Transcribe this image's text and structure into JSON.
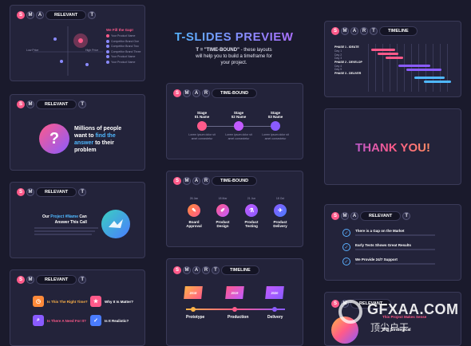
{
  "smart": [
    "S",
    "M",
    "A",
    "R",
    "T"
  ],
  "intro": {
    "title": "T-SLIDES PREVIEW",
    "line1_bold": "T = \"TIME-BOUND\"",
    "line1_rest": " - these layouts",
    "line2": "will help you to build a timeframe for",
    "line3": "your project."
  },
  "s1": {
    "pill": "RELEVANT",
    "gap_title": "We Fill the Gap!",
    "list": [
      "Your Product Name",
      "Competitor Brand One",
      "Competitor Brand Two",
      "Competitor Brand Three",
      "Your Product Name",
      "Your Product Name"
    ],
    "axis_left": "Low Price",
    "axis_right": "High Price"
  },
  "s2": {
    "pill": "RELEVANT",
    "question": "?",
    "text_a": "Millions of people",
    "text_b": "want to ",
    "text_b_hl": "find the",
    "text_c_hl": "answer",
    "text_c": " to their",
    "text_d": "problem"
  },
  "s3": {
    "pill": "RELEVANT",
    "head_a": "Our ",
    "head_hl": "Project #Name",
    "head_b": " Can",
    "head_c": "Answer This Call"
  },
  "s4": {
    "pill": "RELEVANT",
    "items": [
      "Is This The Right Time?",
      "Why It Is Matter?",
      "Is There A Need For It?",
      "Is It Realistic?"
    ]
  },
  "s5": {
    "pill": "TIME-BOUND",
    "stages": [
      {
        "label": "Stage",
        "name": "01 Name"
      },
      {
        "label": "Stage",
        "name": "02 Name"
      },
      {
        "label": "Stage",
        "name": "03 Name"
      }
    ]
  },
  "s6": {
    "pill": "TIME-BOUND",
    "dates": [
      "26 Jan",
      "18 Mar",
      "21 Jun",
      "18 Oct"
    ],
    "items": [
      {
        "a": "Board",
        "b": "Approval"
      },
      {
        "a": "Product",
        "b": "Design"
      },
      {
        "a": "Product",
        "b": "Testing"
      },
      {
        "a": "Product",
        "b": "Delivery"
      }
    ]
  },
  "s7": {
    "pill": "TIMELINE",
    "cards": [
      "2018",
      "2019",
      "2020"
    ],
    "phases": [
      "Prototype",
      "Production",
      "Delivery"
    ]
  },
  "s8": {
    "pill": "TIMELINE",
    "phases": [
      "PHASE 1 - IDEATE",
      "PHASE 2 - DEVELOP",
      "PHASE 3 - DELIVER"
    ],
    "days": [
      "Day 1",
      "Day 2",
      "Day 3",
      "Day 4",
      "Day 5"
    ]
  },
  "s9": {
    "thanks": "THANK YOU!"
  },
  "s10": {
    "pill": "RELEVANT",
    "items": [
      "There is a Gap on the Market",
      "Early Tests Shows Great Results",
      "We Provide 24/7 Support"
    ]
  },
  "s11": {
    "pill": "RELEVANT",
    "l1": "This Project Makes Sense",
    "l2": "It Is Strategical"
  },
  "watermark": {
    "main": "GFXAA.COM",
    "sub": "顶尖户干"
  },
  "colors": {
    "pink": "#ff5a8a",
    "purple": "#8a5bff",
    "blue": "#4fb8ff",
    "orange": "#ffb347"
  }
}
